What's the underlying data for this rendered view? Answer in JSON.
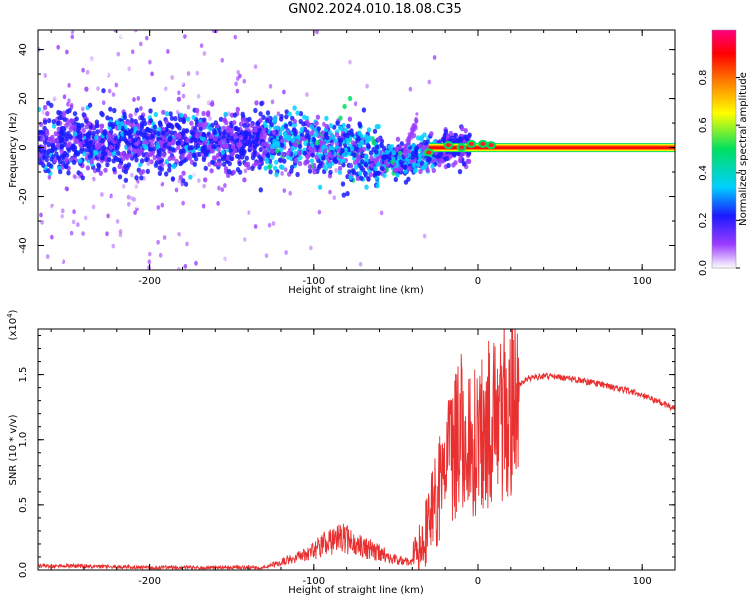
{
  "title": "GN02.2024.010.18.08.C35",
  "chart_data": [
    {
      "type": "heatmap",
      "xlabel": "Height of straight line (km)",
      "ylabel": "Frequency (Hz)",
      "xlim": [
        -268,
        120
      ],
      "ylim": [
        -50,
        48
      ],
      "x_ticks": [
        -200,
        -100,
        0,
        100
      ],
      "y_ticks": [
        -40,
        -20,
        0,
        20,
        40
      ],
      "colorbar": {
        "label": "Normalized spectral amplitude",
        "range": [
          0.0,
          1.0
        ],
        "ticks": [
          0.0,
          0.2,
          0.4,
          0.6,
          0.8
        ],
        "colors": [
          "#ffffff",
          "#9b3cff",
          "#1a1aff",
          "#00d0ff",
          "#00e060",
          "#ffff00",
          "#ff8000",
          "#ff0000",
          "#ff0080"
        ]
      },
      "ridge": [
        {
          "x": -268,
          "f": 2
        },
        {
          "x": -200,
          "f": 2
        },
        {
          "x": -120,
          "f": 3
        },
        {
          "x": -90,
          "f": 0
        },
        {
          "x": -60,
          "f": -4
        },
        {
          "x": -42,
          "f": -6
        },
        {
          "x": -30,
          "f": -2
        },
        {
          "x": -10,
          "f": 0
        },
        {
          "x": 10,
          "f": 0
        },
        {
          "x": 120,
          "f": 0
        }
      ]
    },
    {
      "type": "line",
      "xlabel": "Height of straight line (km)",
      "ylabel": "SNR (10 * v/v)",
      "multiplier": "(x10^4)",
      "xlim": [
        -268,
        120
      ],
      "ylim": [
        0,
        1.85
      ],
      "x_ticks": [
        -200,
        -100,
        0,
        100
      ],
      "y_ticks": [
        0.0,
        0.5,
        1.0,
        1.5
      ],
      "y_tick_labels": [
        "0.0",
        "0.5",
        "1.0",
        "1.5"
      ],
      "color": "#e83030",
      "series": [
        {
          "x": [
            -268,
            -240,
            -200,
            -160,
            -130,
            -120,
            -110,
            -100,
            -90,
            -82,
            -75,
            -60,
            -50,
            -40,
            -35,
            -30,
            -25,
            -20,
            -15,
            -12,
            -10,
            -5,
            0,
            5,
            10,
            15,
            20,
            25,
            30,
            40,
            50,
            60,
            70,
            80,
            90,
            100,
            110,
            120
          ],
          "y": [
            0.03,
            0.03,
            0.02,
            0.02,
            0.02,
            0.06,
            0.11,
            0.16,
            0.22,
            0.25,
            0.2,
            0.13,
            0.08,
            0.06,
            0.15,
            0.35,
            0.55,
            0.75,
            0.9,
            1.0,
            1.05,
            0.95,
            1.0,
            1.1,
            1.15,
            1.2,
            1.3,
            1.42,
            1.47,
            1.49,
            1.48,
            1.46,
            1.44,
            1.41,
            1.38,
            1.34,
            1.29,
            1.24
          ]
        }
      ]
    }
  ]
}
